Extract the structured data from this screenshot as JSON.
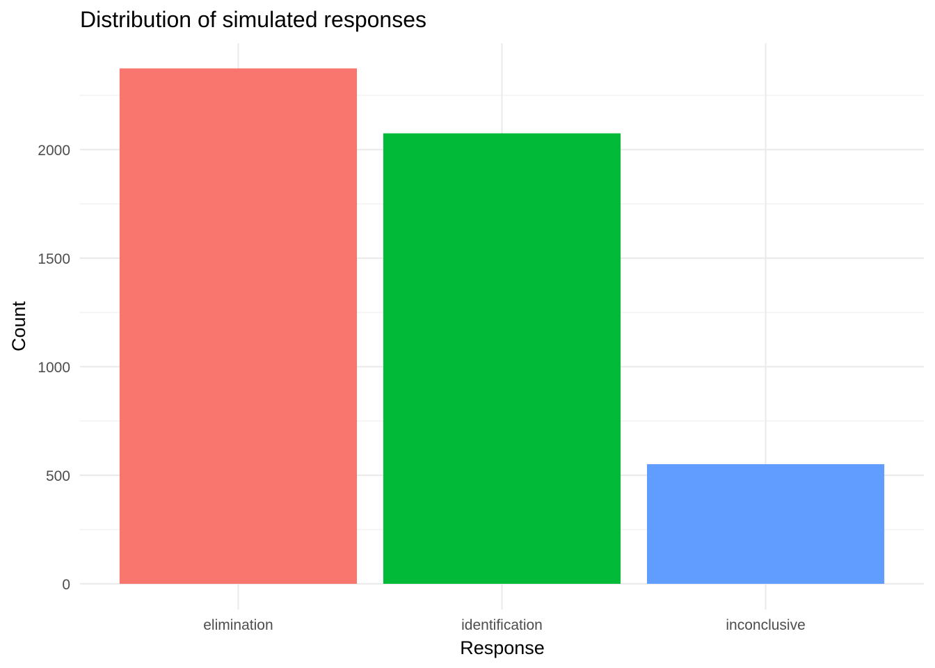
{
  "chart_data": {
    "type": "bar",
    "title": "Distribution of simulated responses",
    "xlabel": "Response",
    "ylabel": "Count",
    "categories": [
      "elimination",
      "identification",
      "inconclusive"
    ],
    "values": [
      2374,
      2075,
      551
    ],
    "colors": [
      "#F8766D",
      "#00BA38",
      "#619CFF"
    ],
    "ylim": [
      0,
      2500
    ],
    "yticks": [
      0,
      500,
      1000,
      1500,
      2000
    ],
    "grid": true,
    "legend": "none"
  }
}
